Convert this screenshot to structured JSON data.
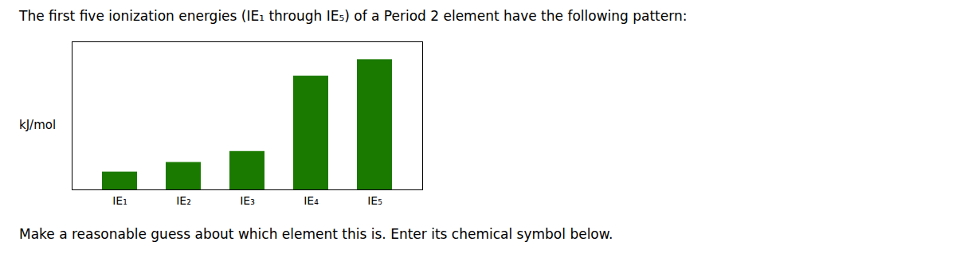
{
  "chart_data": {
    "type": "bar",
    "title": "The first five ionization energies (IE₁ through IE₅) of a Period 2 element have the following pattern:",
    "annotation": "Make a reasonable guess about which element this is. Enter its chemical symbol below.",
    "ylabel": "kJ/mol",
    "categories": [
      "IE₁",
      "IE₂",
      "IE₃",
      "IE₄",
      "IE₅"
    ],
    "values": [
      0.13,
      0.2,
      0.28,
      0.83,
      0.95
    ],
    "color": "#1a7a00",
    "ylim": [
      0,
      1.08
    ],
    "tick_labels": "x",
    "grid": false
  }
}
